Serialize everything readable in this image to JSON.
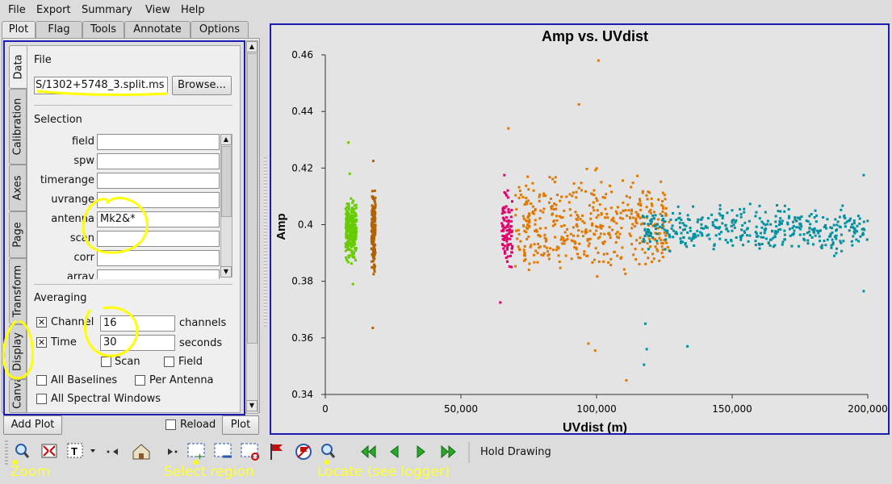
{
  "menu": [
    "File",
    "Export",
    "Summary",
    "View",
    "Help"
  ],
  "top_tabs": [
    "Plot",
    "Flag",
    "Tools",
    "Annotate",
    "Options"
  ],
  "side_tabs": [
    "Data",
    "Calibration",
    "Axes",
    "Page",
    "Transform",
    "Display",
    "Canvas"
  ],
  "file": {
    "section": "File",
    "value": "S/1302+5748_3.split.ms",
    "browse": "Browse..."
  },
  "selection": {
    "section": "Selection",
    "fields": [
      {
        "label": "field",
        "value": ""
      },
      {
        "label": "spw",
        "value": ""
      },
      {
        "label": "timerange",
        "value": ""
      },
      {
        "label": "uvrange",
        "value": ""
      },
      {
        "label": "antenna",
        "value": "Mk2&*"
      },
      {
        "label": "scan",
        "value": ""
      },
      {
        "label": "corr",
        "value": ""
      },
      {
        "label": "array",
        "value": ""
      }
    ]
  },
  "averaging": {
    "section": "Averaging",
    "channel_label": "Channel",
    "channel_value": "16",
    "channel_unit": "channels",
    "time_label": "Time",
    "time_value": "30",
    "time_unit": "seconds",
    "scan": "Scan",
    "field": "Field",
    "all_baselines": "All Baselines",
    "per_antenna": "Per Antenna",
    "all_spw": "All Spectral Windows"
  },
  "bottom": {
    "add_plot": "Add Plot",
    "reload": "Reload",
    "plot": "Plot"
  },
  "toolbar": {
    "hold": "Hold Drawing",
    "icons": [
      "zoom-icon",
      "zoom-fit-icon",
      "text-tool-icon",
      "prev-icon",
      "home-icon",
      "next-icon",
      "select-region-icon",
      "remove-region-icon",
      "clear-region-icon",
      "flag-icon",
      "unflag-icon",
      "locate-icon",
      "first-icon",
      "back-icon",
      "forward-icon",
      "last-icon"
    ]
  },
  "annotations": {
    "zoom": "Zoom",
    "select_region": "Select region",
    "locate": "Locate (see logger)"
  },
  "colors": {
    "green": "#66cc00",
    "brown": "#b36200",
    "magenta": "#e0006a",
    "orange": "#e07800",
    "teal": "#0090a0",
    "frame_blue": "#1c1cb4",
    "annotation": "#ffff00"
  },
  "chart_data": {
    "type": "scatter",
    "title": "Amp vs. UVdist",
    "xlabel": "UVdist (m)",
    "ylabel": "Amp",
    "xlim": [
      0,
      200000
    ],
    "ylim": [
      0.34,
      0.46
    ],
    "xticks": [
      0,
      50000,
      100000,
      150000,
      200000
    ],
    "xtick_labels": [
      "0",
      "50,000",
      "100,000",
      "150,000",
      "200,000"
    ],
    "yticks": [
      0.34,
      0.36,
      0.38,
      0.4,
      0.42,
      0.44,
      0.46
    ],
    "ytick_labels": [
      "0.34",
      "0.36",
      "0.38",
      "0.4",
      "0.42",
      "0.44",
      "0.46"
    ],
    "grid": false,
    "series": [
      {
        "color": "#66cc00",
        "x_range": [
          7500,
          11500
        ],
        "y_center": 0.398,
        "y_spread": 0.014,
        "n": 260,
        "outliers": [
          [
            8500,
            0.429
          ],
          [
            9000,
            0.418
          ],
          [
            10200,
            0.379
          ]
        ]
      },
      {
        "color": "#b36200",
        "x_range": [
          17000,
          18500
        ],
        "y_center": 0.398,
        "y_spread": 0.018,
        "n": 160,
        "outliers": [
          [
            17500,
            0.3635
          ],
          [
            17700,
            0.4225
          ]
        ]
      },
      {
        "color": "#e0006a",
        "x_range": [
          65000,
          69000
        ],
        "y_center": 0.398,
        "y_spread": 0.018,
        "n": 90,
        "outliers": [
          [
            64500,
            0.3725
          ],
          [
            66000,
            0.4175
          ]
        ]
      },
      {
        "color": "#e07800",
        "x_range": [
          70000,
          127000
        ],
        "y_center": 0.399,
        "y_spread": 0.024,
        "n": 460,
        "outliers": [
          [
            100700,
            0.458
          ],
          [
            93500,
            0.4425
          ],
          [
            99500,
            0.3555
          ],
          [
            111000,
            0.345
          ],
          [
            97000,
            0.358
          ],
          [
            67500,
            0.434
          ]
        ]
      },
      {
        "color": "#0090a0",
        "x_range": [
          117000,
          200000
        ],
        "y_center": 0.3985,
        "y_spread": 0.011,
        "n": 420,
        "outliers": [
          [
            117500,
            0.3505
          ],
          [
            118500,
            0.356
          ],
          [
            133500,
            0.357
          ],
          [
            118000,
            0.365
          ],
          [
            198500,
            0.3765
          ],
          [
            198500,
            0.4175
          ]
        ]
      }
    ]
  }
}
